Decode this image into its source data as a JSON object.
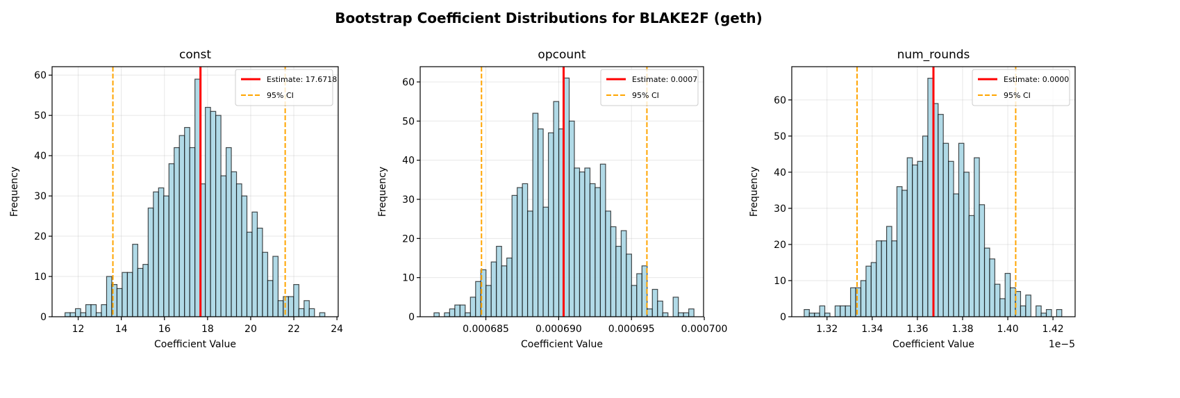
{
  "figure": {
    "title": "Bootstrap Coefficient Distributions for BLAKE2F (geth)",
    "bar_color": "#add8e6",
    "bar_edge_color": "#000000",
    "estimate_color": "#ff0000",
    "ci_color": "#ffa500"
  },
  "chart_data": [
    {
      "type": "bar",
      "title": "const",
      "xlabel": "Coefficient Value",
      "ylabel": "Frequency",
      "bin_start": 11.39,
      "bin_width": 0.241,
      "values": [
        1,
        1,
        2,
        1,
        3,
        3,
        1,
        3,
        10,
        8,
        7,
        11,
        11,
        18,
        12,
        13,
        27,
        31,
        32,
        30,
        38,
        42,
        45,
        47,
        42,
        59,
        33,
        52,
        51,
        50,
        35,
        42,
        36,
        33,
        30,
        21,
        26,
        22,
        16,
        9,
        15,
        4,
        5,
        5,
        8,
        2,
        4,
        2,
        0,
        1
      ],
      "estimate": 17.6718,
      "ci": [
        13.61,
        21.6
      ],
      "xlim": [
        10.79,
        24.06
      ],
      "ylim": [
        0,
        62.1
      ],
      "xticks": [
        {
          "v": 12,
          "label": "12"
        },
        {
          "v": 14,
          "label": "14"
        },
        {
          "v": 16,
          "label": "16"
        },
        {
          "v": 18,
          "label": "18"
        },
        {
          "v": 20,
          "label": "20"
        },
        {
          "v": 22,
          "label": "22"
        },
        {
          "v": 24,
          "label": "24"
        }
      ],
      "yticks": [
        {
          "v": 0,
          "label": "0"
        },
        {
          "v": 10,
          "label": "10"
        },
        {
          "v": 20,
          "label": "20"
        },
        {
          "v": 30,
          "label": "30"
        },
        {
          "v": 40,
          "label": "40"
        },
        {
          "v": 50,
          "label": "50"
        },
        {
          "v": 60,
          "label": "60"
        }
      ],
      "grid": true,
      "legend_position": "upper-right",
      "legend": [
        "Estimate: 17.6718",
        "95% CI"
      ],
      "x_offset_label": ""
    },
    {
      "type": "bar",
      "title": "opcount",
      "xlabel": "Coefficient Value",
      "ylabel": "Frequency",
      "bin_start": 0.00068144,
      "bin_width": 3.57e-07,
      "values": [
        1,
        0,
        1,
        2,
        3,
        3,
        1,
        5,
        9,
        12,
        8,
        14,
        18,
        13,
        15,
        31,
        33,
        34,
        27,
        52,
        48,
        28,
        47,
        55,
        48,
        61,
        50,
        38,
        37,
        38,
        34,
        33,
        39,
        27,
        23,
        18,
        22,
        16,
        8,
        11,
        13,
        2,
        7,
        4,
        1,
        0,
        5,
        1,
        1,
        2
      ],
      "estimate": 0.00069034,
      "ci": [
        0.0006847,
        0.00069606
      ],
      "xlim": [
        0.00068049,
        0.00069995
      ],
      "ylim": [
        0,
        63.9
      ],
      "xticks": [
        {
          "v": 0.000685,
          "label": "0.000685"
        },
        {
          "v": 0.00069,
          "label": "0.000690"
        },
        {
          "v": 0.000695,
          "label": "0.000695"
        },
        {
          "v": 0.0007,
          "label": "0.000700"
        }
      ],
      "yticks": [
        {
          "v": 0,
          "label": "0"
        },
        {
          "v": 10,
          "label": "10"
        },
        {
          "v": 20,
          "label": "20"
        },
        {
          "v": 30,
          "label": "30"
        },
        {
          "v": 40,
          "label": "40"
        },
        {
          "v": 50,
          "label": "50"
        },
        {
          "v": 60,
          "label": "60"
        }
      ],
      "grid": true,
      "legend_position": "upper-right",
      "legend": [
        "Estimate: 0.0007",
        "95% CI"
      ],
      "x_offset_label": ""
    },
    {
      "type": "bar",
      "title": "num_rounds",
      "xlabel": "Coefficient Value",
      "ylabel": "Frequency",
      "bin_start": 1.3099,
      "bin_width": 0.00228,
      "values": [
        2,
        1,
        1,
        3,
        1,
        0,
        3,
        3,
        3,
        8,
        8,
        10,
        14,
        15,
        21,
        21,
        25,
        21,
        36,
        35,
        44,
        42,
        43,
        50,
        66,
        59,
        56,
        48,
        43,
        34,
        48,
        40,
        28,
        44,
        31,
        19,
        16,
        9,
        5,
        12,
        8,
        7,
        3,
        6,
        0,
        3,
        1,
        2,
        0,
        2
      ],
      "estimate": 1.3671,
      "ci": [
        1.3333,
        1.4035
      ],
      "xlim": [
        1.3044,
        1.4298
      ],
      "ylim": [
        0,
        69.2
      ],
      "xticks": [
        {
          "v": 1.32,
          "label": "1.32"
        },
        {
          "v": 1.34,
          "label": "1.34"
        },
        {
          "v": 1.36,
          "label": "1.36"
        },
        {
          "v": 1.38,
          "label": "1.38"
        },
        {
          "v": 1.4,
          "label": "1.40"
        },
        {
          "v": 1.42,
          "label": "1.42"
        }
      ],
      "yticks": [
        {
          "v": 0,
          "label": "0"
        },
        {
          "v": 10,
          "label": "10"
        },
        {
          "v": 20,
          "label": "20"
        },
        {
          "v": 30,
          "label": "30"
        },
        {
          "v": 40,
          "label": "40"
        },
        {
          "v": 50,
          "label": "50"
        },
        {
          "v": 60,
          "label": "60"
        }
      ],
      "grid": true,
      "legend_position": "upper-right",
      "legend": [
        "Estimate: 0.0000",
        "95% CI"
      ],
      "x_offset_label": "1e−5"
    }
  ]
}
